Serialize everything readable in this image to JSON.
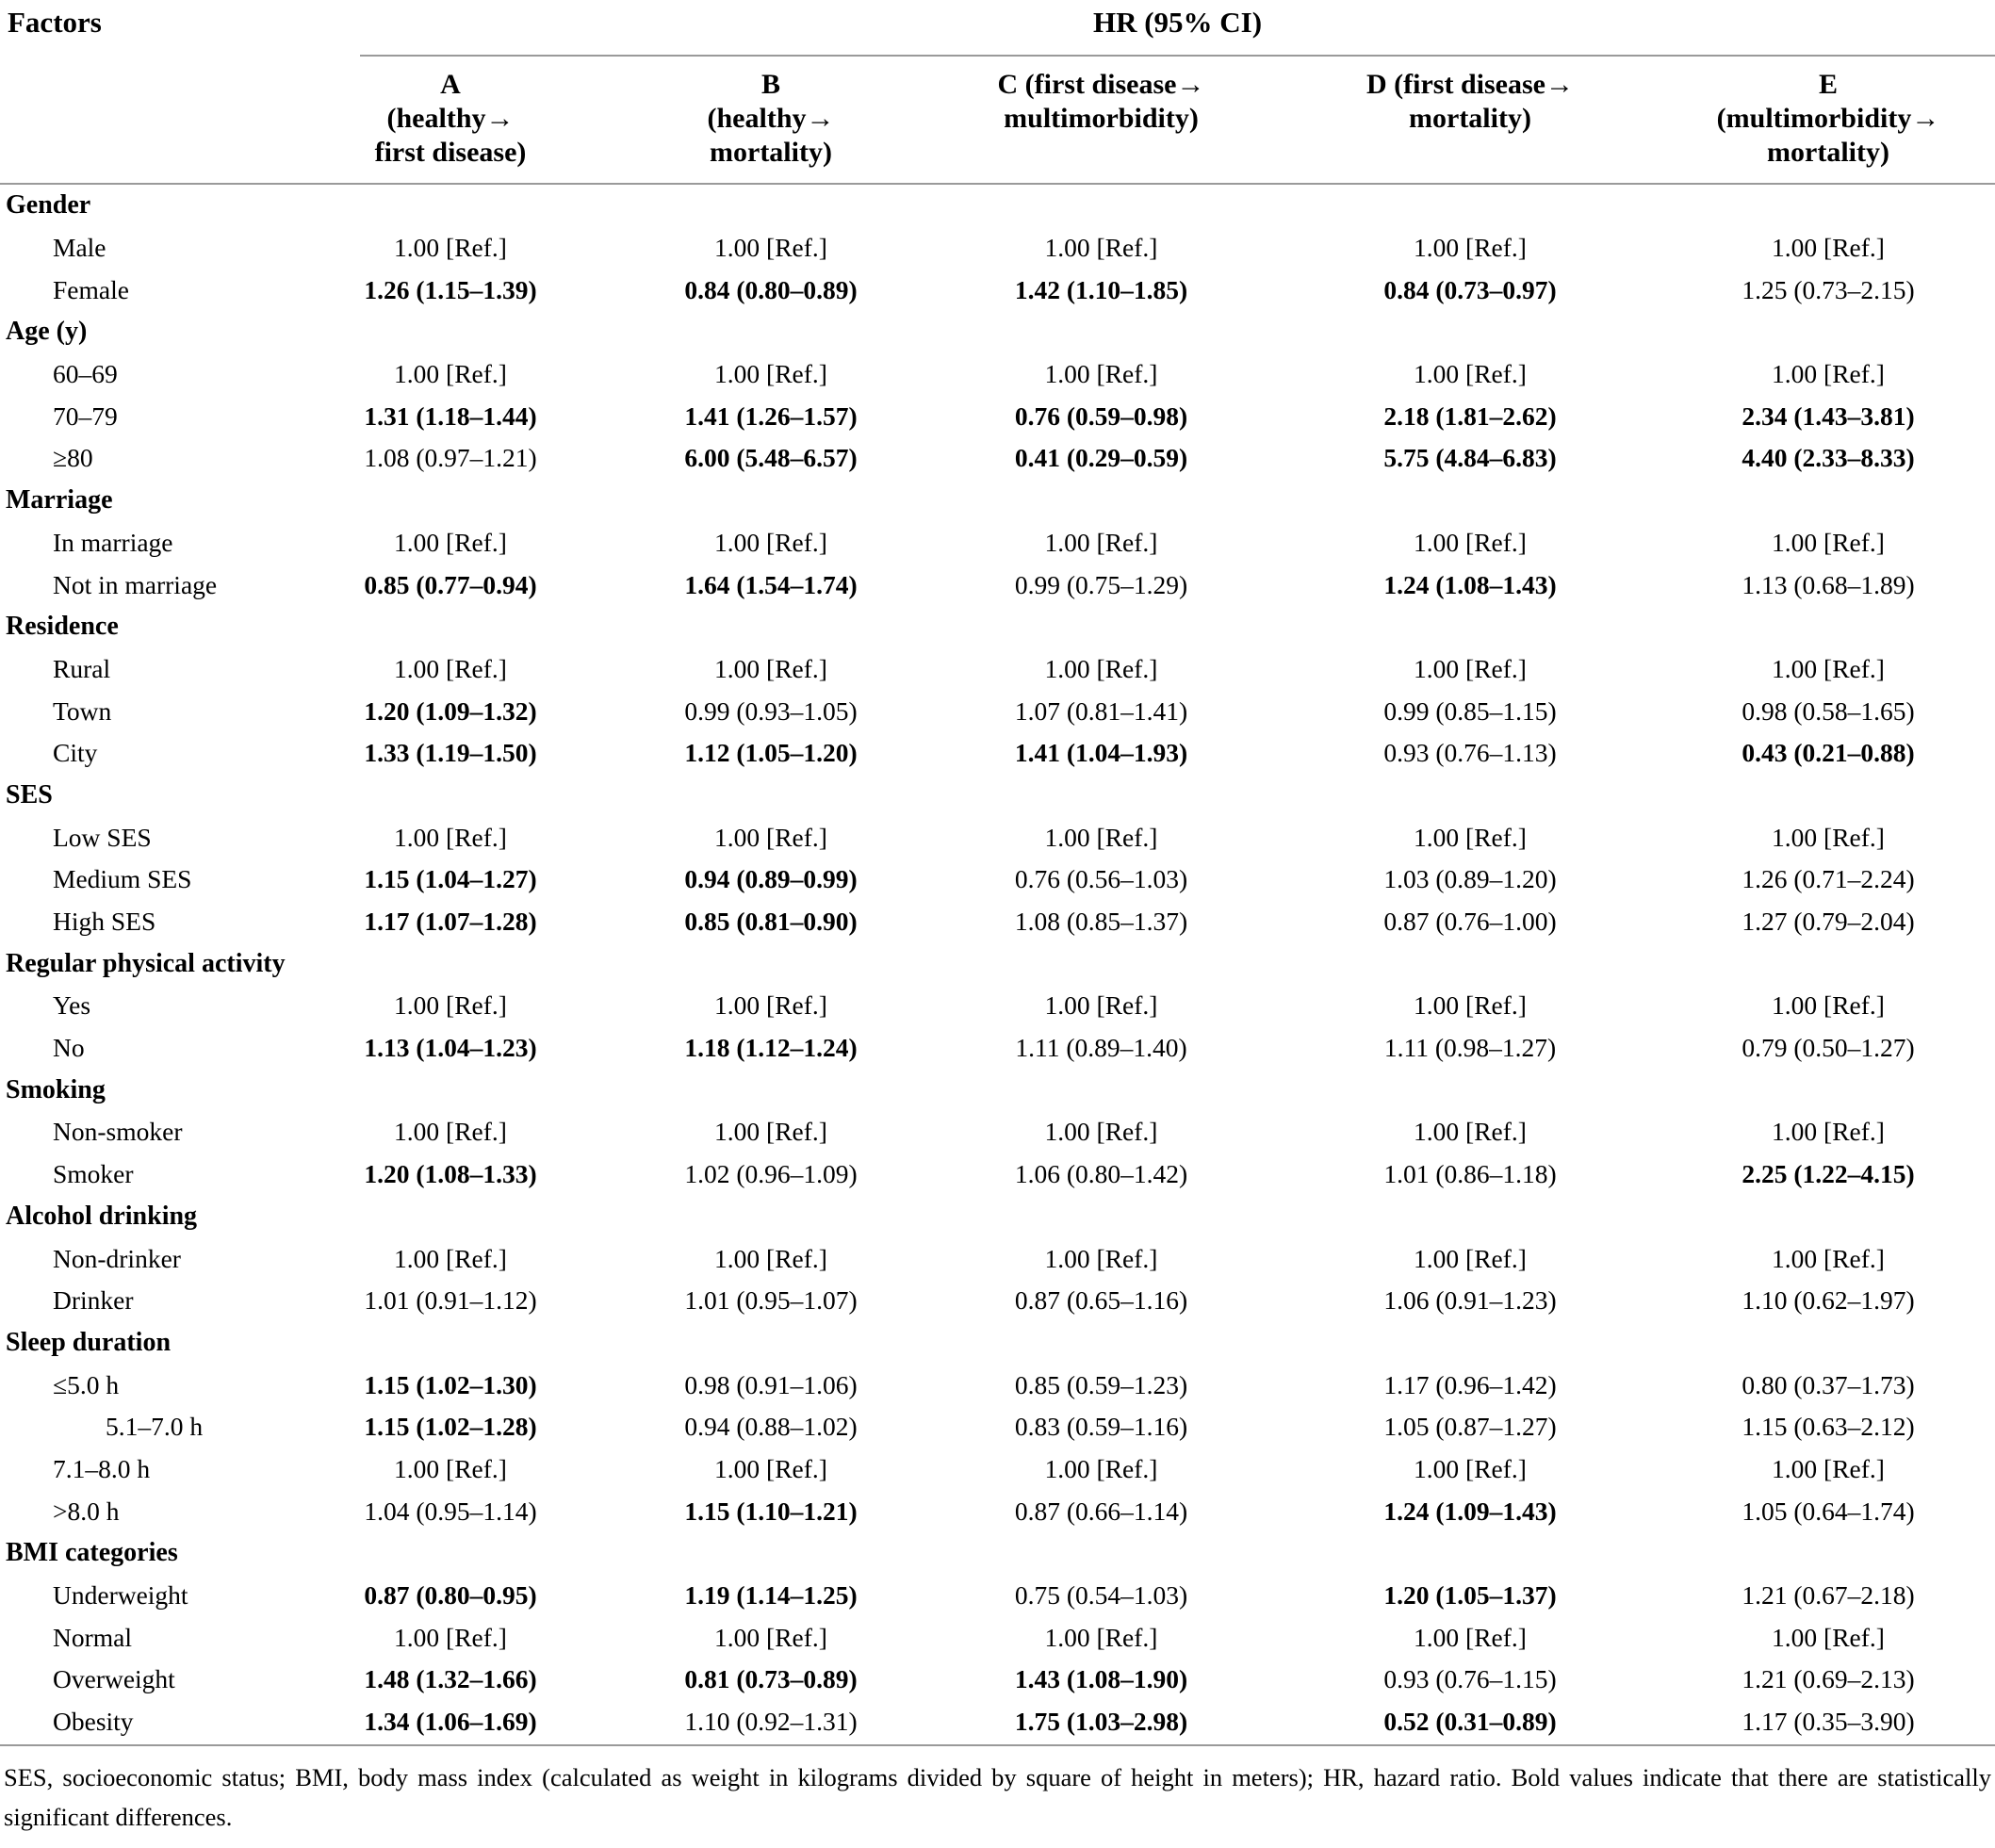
{
  "colors": {
    "text": "#000000",
    "background": "#ffffff",
    "rule": "#9a9a9a"
  },
  "table": {
    "factors_header": "Factors",
    "group_header": "HR (95% CI)",
    "columns": [
      {
        "lines": [
          "A",
          "(healthy→",
          "first disease)"
        ]
      },
      {
        "lines": [
          "B",
          "(healthy→",
          "mortality)"
        ]
      },
      {
        "lines": [
          "C (first disease→",
          "multimorbidity)"
        ]
      },
      {
        "lines": [
          "D (first disease→",
          "mortality)"
        ]
      },
      {
        "lines": [
          "E",
          "(multimorbidity→",
          "mortality)"
        ]
      }
    ],
    "sections": [
      {
        "label": "Gender",
        "rows": [
          {
            "label": "Male",
            "indent": 1,
            "values": [
              "1.00 [Ref.]",
              "1.00 [Ref.]",
              "1.00 [Ref.]",
              "1.00 [Ref.]",
              "1.00 [Ref.]"
            ],
            "bold": [
              false,
              false,
              false,
              false,
              false
            ]
          },
          {
            "label": "Female",
            "indent": 1,
            "values": [
              "1.26 (1.15–1.39)",
              "0.84 (0.80–0.89)",
              "1.42 (1.10–1.85)",
              "0.84 (0.73–0.97)",
              "1.25 (0.73–2.15)"
            ],
            "bold": [
              true,
              true,
              true,
              true,
              false
            ]
          }
        ]
      },
      {
        "label": "Age (y)",
        "rows": [
          {
            "label": "60–69",
            "indent": 1,
            "values": [
              "1.00 [Ref.]",
              "1.00 [Ref.]",
              "1.00 [Ref.]",
              "1.00 [Ref.]",
              "1.00 [Ref.]"
            ],
            "bold": [
              false,
              false,
              false,
              false,
              false
            ]
          },
          {
            "label": "70–79",
            "indent": 1,
            "values": [
              "1.31 (1.18–1.44)",
              "1.41 (1.26–1.57)",
              "0.76 (0.59–0.98)",
              "2.18 (1.81–2.62)",
              "2.34 (1.43–3.81)"
            ],
            "bold": [
              true,
              true,
              true,
              true,
              true
            ]
          },
          {
            "label": "≥80",
            "indent": 1,
            "values": [
              "1.08 (0.97–1.21)",
              "6.00 (5.48–6.57)",
              "0.41 (0.29–0.59)",
              "5.75 (4.84–6.83)",
              "4.40 (2.33–8.33)"
            ],
            "bold": [
              false,
              true,
              true,
              true,
              true
            ]
          }
        ]
      },
      {
        "label": "Marriage",
        "rows": [
          {
            "label": "In marriage",
            "indent": 1,
            "values": [
              "1.00 [Ref.]",
              "1.00 [Ref.]",
              "1.00 [Ref.]",
              "1.00 [Ref.]",
              "1.00 [Ref.]"
            ],
            "bold": [
              false,
              false,
              false,
              false,
              false
            ]
          },
          {
            "label": "Not in marriage",
            "indent": 1,
            "values": [
              "0.85 (0.77–0.94)",
              "1.64 (1.54–1.74)",
              "0.99 (0.75–1.29)",
              "1.24 (1.08–1.43)",
              "1.13 (0.68–1.89)"
            ],
            "bold": [
              true,
              true,
              false,
              true,
              false
            ]
          }
        ]
      },
      {
        "label": "Residence",
        "rows": [
          {
            "label": "Rural",
            "indent": 1,
            "values": [
              "1.00 [Ref.]",
              "1.00 [Ref.]",
              "1.00 [Ref.]",
              "1.00 [Ref.]",
              "1.00 [Ref.]"
            ],
            "bold": [
              false,
              false,
              false,
              false,
              false
            ]
          },
          {
            "label": "Town",
            "indent": 1,
            "values": [
              "1.20 (1.09–1.32)",
              "0.99 (0.93–1.05)",
              "1.07 (0.81–1.41)",
              "0.99 (0.85–1.15)",
              "0.98 (0.58–1.65)"
            ],
            "bold": [
              true,
              false,
              false,
              false,
              false
            ]
          },
          {
            "label": "City",
            "indent": 1,
            "values": [
              "1.33 (1.19–1.50)",
              "1.12 (1.05–1.20)",
              "1.41 (1.04–1.93)",
              "0.93 (0.76–1.13)",
              "0.43 (0.21–0.88)"
            ],
            "bold": [
              true,
              true,
              true,
              false,
              true
            ]
          }
        ]
      },
      {
        "label": "SES",
        "rows": [
          {
            "label": "Low SES",
            "indent": 1,
            "values": [
              "1.00 [Ref.]",
              "1.00 [Ref.]",
              "1.00 [Ref.]",
              "1.00 [Ref.]",
              "1.00 [Ref.]"
            ],
            "bold": [
              false,
              false,
              false,
              false,
              false
            ]
          },
          {
            "label": "Medium SES",
            "indent": 1,
            "values": [
              "1.15 (1.04–1.27)",
              "0.94 (0.89–0.99)",
              "0.76 (0.56–1.03)",
              "1.03 (0.89–1.20)",
              "1.26 (0.71–2.24)"
            ],
            "bold": [
              true,
              true,
              false,
              false,
              false
            ]
          },
          {
            "label": "High SES",
            "indent": 1,
            "values": [
              "1.17 (1.07–1.28)",
              "0.85 (0.81–0.90)",
              "1.08 (0.85–1.37)",
              "0.87 (0.76–1.00)",
              "1.27 (0.79–2.04)"
            ],
            "bold": [
              true,
              true,
              false,
              false,
              false
            ]
          }
        ]
      },
      {
        "label": "Regular physical activity",
        "rows": [
          {
            "label": "Yes",
            "indent": 1,
            "values": [
              "1.00 [Ref.]",
              "1.00 [Ref.]",
              "1.00 [Ref.]",
              "1.00 [Ref.]",
              "1.00 [Ref.]"
            ],
            "bold": [
              false,
              false,
              false,
              false,
              false
            ]
          },
          {
            "label": "No",
            "indent": 1,
            "values": [
              "1.13 (1.04–1.23)",
              "1.18 (1.12–1.24)",
              "1.11 (0.89–1.40)",
              "1.11 (0.98–1.27)",
              "0.79 (0.50–1.27)"
            ],
            "bold": [
              true,
              true,
              false,
              false,
              false
            ]
          }
        ]
      },
      {
        "label": "Smoking",
        "rows": [
          {
            "label": "Non-smoker",
            "indent": 1,
            "values": [
              "1.00 [Ref.]",
              "1.00 [Ref.]",
              "1.00 [Ref.]",
              "1.00 [Ref.]",
              "1.00 [Ref.]"
            ],
            "bold": [
              false,
              false,
              false,
              false,
              false
            ]
          },
          {
            "label": "Smoker",
            "indent": 1,
            "values": [
              "1.20 (1.08–1.33)",
              "1.02 (0.96–1.09)",
              "1.06 (0.80–1.42)",
              "1.01 (0.86–1.18)",
              "2.25 (1.22–4.15)"
            ],
            "bold": [
              true,
              false,
              false,
              false,
              true
            ]
          }
        ]
      },
      {
        "label": "Alcohol drinking",
        "rows": [
          {
            "label": "Non-drinker",
            "indent": 1,
            "values": [
              "1.00 [Ref.]",
              "1.00 [Ref.]",
              "1.00 [Ref.]",
              "1.00 [Ref.]",
              "1.00 [Ref.]"
            ],
            "bold": [
              false,
              false,
              false,
              false,
              false
            ]
          },
          {
            "label": "Drinker",
            "indent": 1,
            "values": [
              "1.01 (0.91–1.12)",
              "1.01 (0.95–1.07)",
              "0.87 (0.65–1.16)",
              "1.06 (0.91–1.23)",
              "1.10 (0.62–1.97)"
            ],
            "bold": [
              false,
              false,
              false,
              false,
              false
            ]
          }
        ]
      },
      {
        "label": "Sleep duration",
        "rows": [
          {
            "label": "≤5.0 h",
            "indent": 1,
            "values": [
              "1.15 (1.02–1.30)",
              "0.98 (0.91–1.06)",
              "0.85 (0.59–1.23)",
              "1.17 (0.96–1.42)",
              "0.80 (0.37–1.73)"
            ],
            "bold": [
              true,
              false,
              false,
              false,
              false
            ]
          },
          {
            "label": "5.1–7.0 h",
            "indent": 2,
            "values": [
              "1.15 (1.02–1.28)",
              "0.94 (0.88–1.02)",
              "0.83 (0.59–1.16)",
              "1.05 (0.87–1.27)",
              "1.15 (0.63–2.12)"
            ],
            "bold": [
              true,
              false,
              false,
              false,
              false
            ]
          },
          {
            "label": "7.1–8.0 h",
            "indent": 1,
            "values": [
              "1.00 [Ref.]",
              "1.00 [Ref.]",
              "1.00 [Ref.]",
              "1.00 [Ref.]",
              "1.00 [Ref.]"
            ],
            "bold": [
              false,
              false,
              false,
              false,
              false
            ]
          },
          {
            "label": ">8.0 h",
            "indent": 1,
            "values": [
              "1.04 (0.95–1.14)",
              "1.15 (1.10–1.21)",
              "0.87 (0.66–1.14)",
              "1.24 (1.09–1.43)",
              "1.05 (0.64–1.74)"
            ],
            "bold": [
              false,
              true,
              false,
              true,
              false
            ]
          }
        ]
      },
      {
        "label": "BMI categories",
        "rows": [
          {
            "label": "Underweight",
            "indent": 1,
            "values": [
              "0.87 (0.80–0.95)",
              "1.19 (1.14–1.25)",
              "0.75 (0.54–1.03)",
              "1.20 (1.05–1.37)",
              "1.21 (0.67–2.18)"
            ],
            "bold": [
              true,
              true,
              false,
              true,
              false
            ]
          },
          {
            "label": "Normal",
            "indent": 1,
            "values": [
              "1.00 [Ref.]",
              "1.00 [Ref.]",
              "1.00 [Ref.]",
              "1.00 [Ref.]",
              "1.00 [Ref.]"
            ],
            "bold": [
              false,
              false,
              false,
              false,
              false
            ]
          },
          {
            "label": "Overweight",
            "indent": 1,
            "values": [
              "1.48 (1.32–1.66)",
              "0.81 (0.73–0.89)",
              "1.43 (1.08–1.90)",
              "0.93 (0.76–1.15)",
              "1.21 (0.69–2.13)"
            ],
            "bold": [
              true,
              true,
              true,
              false,
              false
            ]
          },
          {
            "label": "Obesity",
            "indent": 1,
            "values": [
              "1.34 (1.06–1.69)",
              "1.10 (0.92–1.31)",
              "1.75 (1.03–2.98)",
              "0.52 (0.31–0.89)",
              "1.17 (0.35–3.90)"
            ],
            "bold": [
              true,
              false,
              true,
              true,
              false
            ]
          }
        ]
      }
    ],
    "footnote": "SES, socioeconomic status; BMI, body mass index (calculated as weight in kilograms divided by square of height in meters); HR, hazard ratio. Bold values indicate that there are statistically significant differences."
  }
}
